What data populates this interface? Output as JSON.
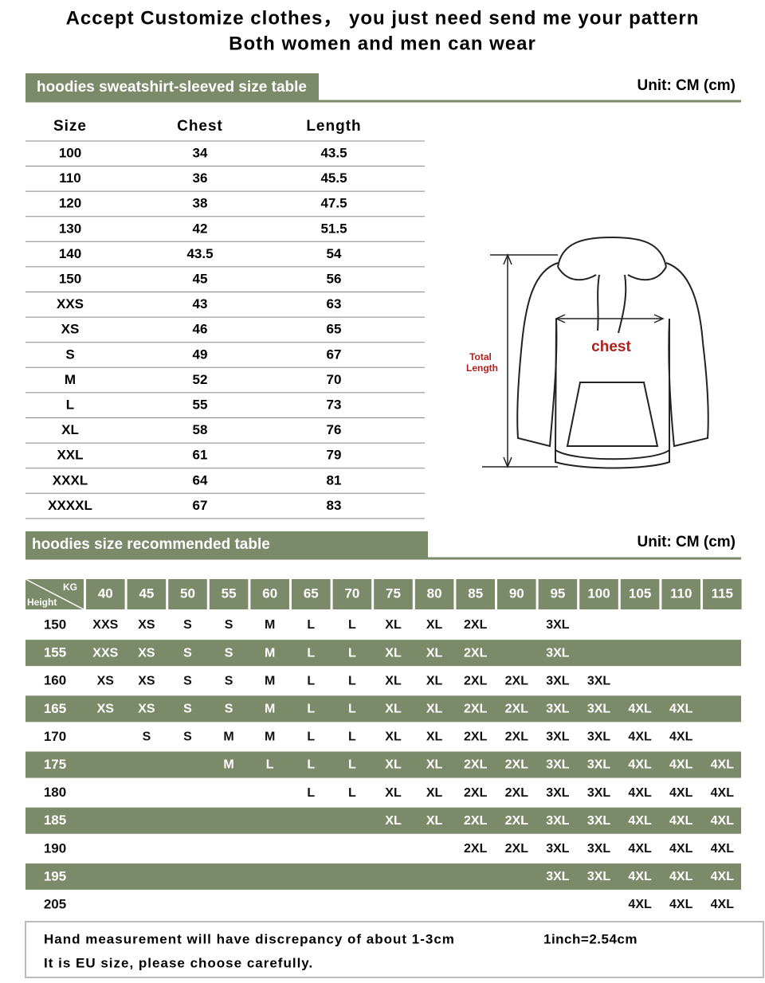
{
  "header": {
    "line1": "Accept Customize clothes， you just need send me your pattern",
    "line2": "Both women and men can wear"
  },
  "size_table": {
    "title": "hoodies sweatshirt-sleeved size table",
    "unit": "Unit: CM (cm)",
    "columns": [
      "Size",
      "Chest",
      "Length"
    ],
    "rows": [
      [
        "100",
        "34",
        "43.5"
      ],
      [
        "110",
        "36",
        "45.5"
      ],
      [
        "120",
        "38",
        "47.5"
      ],
      [
        "130",
        "42",
        "51.5"
      ],
      [
        "140",
        "43.5",
        "54"
      ],
      [
        "150",
        "45",
        "56"
      ],
      [
        "XXS",
        "43",
        "63"
      ],
      [
        "XS",
        "46",
        "65"
      ],
      [
        "S",
        "49",
        "67"
      ],
      [
        "M",
        "52",
        "70"
      ],
      [
        "L",
        "55",
        "73"
      ],
      [
        "XL",
        "58",
        "76"
      ],
      [
        "XXL",
        "61",
        "79"
      ],
      [
        "XXXL",
        "64",
        "81"
      ],
      [
        "XXXXL",
        "67",
        "83"
      ]
    ]
  },
  "diagram": {
    "chest": "chest",
    "total_length": [
      "Total",
      "Length"
    ]
  },
  "recommend_table": {
    "title": "hoodies size recommended table",
    "unit": "Unit: CM (cm)",
    "corner": {
      "kg": "KG",
      "height": "Height"
    },
    "weights": [
      "40",
      "45",
      "50",
      "55",
      "60",
      "65",
      "70",
      "75",
      "80",
      "85",
      "90",
      "95",
      "100",
      "105",
      "110",
      "115"
    ],
    "rows": [
      {
        "height": "150",
        "sizes": [
          "XXS",
          "XS",
          "S",
          "S",
          "M",
          "L",
          "L",
          "XL",
          "XL",
          "2XL",
          null,
          "3XL",
          null,
          null,
          null,
          null
        ]
      },
      {
        "height": "155",
        "sizes": [
          "XXS",
          "XS",
          "S",
          "S",
          "M",
          "L",
          "L",
          "XL",
          "XL",
          "2XL",
          null,
          "3XL",
          null,
          null,
          null,
          null
        ]
      },
      {
        "height": "160",
        "sizes": [
          "XS",
          "XS",
          "S",
          "S",
          "M",
          "L",
          "L",
          "XL",
          "XL",
          "2XL",
          "2XL",
          "3XL",
          "3XL",
          null,
          null,
          null
        ]
      },
      {
        "height": "165",
        "sizes": [
          "XS",
          "XS",
          "S",
          "S",
          "M",
          "L",
          "L",
          "XL",
          "XL",
          "2XL",
          "2XL",
          "3XL",
          "3XL",
          "4XL",
          "4XL",
          null
        ]
      },
      {
        "height": "170",
        "sizes": [
          null,
          "S",
          "S",
          "M",
          "M",
          "L",
          "L",
          "XL",
          "XL",
          "2XL",
          "2XL",
          "3XL",
          "3XL",
          "4XL",
          "4XL",
          null
        ]
      },
      {
        "height": "175",
        "sizes": [
          null,
          null,
          null,
          "M",
          "L",
          "L",
          "L",
          "XL",
          "XL",
          "2XL",
          "2XL",
          "3XL",
          "3XL",
          "4XL",
          "4XL",
          "4XL"
        ]
      },
      {
        "height": "180",
        "sizes": [
          null,
          null,
          null,
          null,
          null,
          "L",
          "L",
          "XL",
          "XL",
          "2XL",
          "2XL",
          "3XL",
          "3XL",
          "4XL",
          "4XL",
          "4XL"
        ]
      },
      {
        "height": "185",
        "sizes": [
          null,
          null,
          null,
          null,
          null,
          null,
          null,
          "XL",
          "XL",
          "2XL",
          "2XL",
          "3XL",
          "3XL",
          "4XL",
          "4XL",
          "4XL"
        ]
      },
      {
        "height": "190",
        "sizes": [
          null,
          null,
          null,
          null,
          null,
          null,
          null,
          null,
          null,
          "2XL",
          "2XL",
          "3XL",
          "3XL",
          "4XL",
          "4XL",
          "4XL"
        ]
      },
      {
        "height": "195",
        "sizes": [
          null,
          null,
          null,
          null,
          null,
          null,
          null,
          null,
          null,
          null,
          null,
          "3XL",
          "3XL",
          "4XL",
          "4XL",
          "4XL"
        ]
      },
      {
        "height": "205",
        "sizes": [
          null,
          null,
          null,
          null,
          null,
          null,
          null,
          null,
          null,
          null,
          null,
          null,
          null,
          "4XL",
          "4XL",
          "4XL"
        ]
      }
    ]
  },
  "footer": {
    "note1": "Hand measurement will have discrepancy of about 1-3cm",
    "conversion": "1inch=2.54cm",
    "note2": "It is EU size, please choose carefully."
  }
}
